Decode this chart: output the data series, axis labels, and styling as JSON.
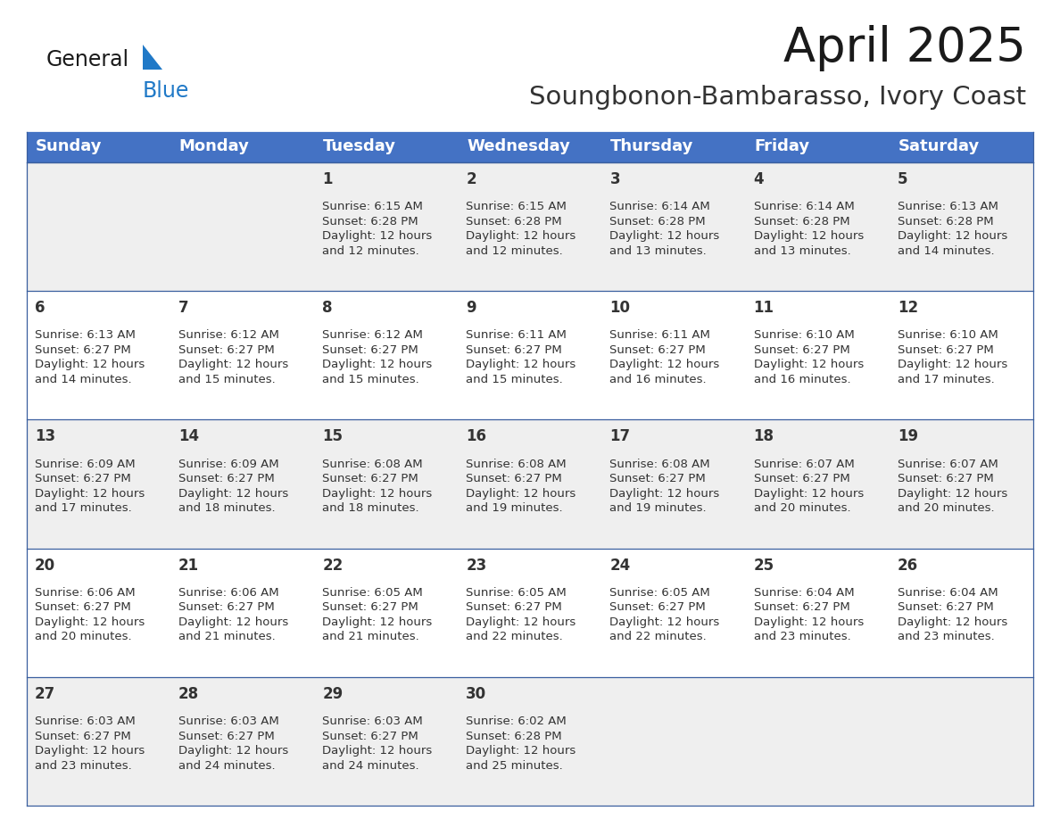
{
  "title": "April 2025",
  "subtitle": "Soungbonon-Bambarasso, Ivory Coast",
  "header_color": "#4472C4",
  "header_text_color": "#FFFFFF",
  "day_names": [
    "Sunday",
    "Monday",
    "Tuesday",
    "Wednesday",
    "Thursday",
    "Friday",
    "Saturday"
  ],
  "cell_bg_odd": "#EFEFEF",
  "cell_bg_even": "#FFFFFF",
  "border_color": "#3A5F9F",
  "text_color": "#333333",
  "calendar": [
    [
      {
        "day": "",
        "info": ""
      },
      {
        "day": "",
        "info": ""
      },
      {
        "day": "1",
        "info": "Sunrise: 6:15 AM\nSunset: 6:28 PM\nDaylight: 12 hours\nand 12 minutes."
      },
      {
        "day": "2",
        "info": "Sunrise: 6:15 AM\nSunset: 6:28 PM\nDaylight: 12 hours\nand 12 minutes."
      },
      {
        "day": "3",
        "info": "Sunrise: 6:14 AM\nSunset: 6:28 PM\nDaylight: 12 hours\nand 13 minutes."
      },
      {
        "day": "4",
        "info": "Sunrise: 6:14 AM\nSunset: 6:28 PM\nDaylight: 12 hours\nand 13 minutes."
      },
      {
        "day": "5",
        "info": "Sunrise: 6:13 AM\nSunset: 6:28 PM\nDaylight: 12 hours\nand 14 minutes."
      }
    ],
    [
      {
        "day": "6",
        "info": "Sunrise: 6:13 AM\nSunset: 6:27 PM\nDaylight: 12 hours\nand 14 minutes."
      },
      {
        "day": "7",
        "info": "Sunrise: 6:12 AM\nSunset: 6:27 PM\nDaylight: 12 hours\nand 15 minutes."
      },
      {
        "day": "8",
        "info": "Sunrise: 6:12 AM\nSunset: 6:27 PM\nDaylight: 12 hours\nand 15 minutes."
      },
      {
        "day": "9",
        "info": "Sunrise: 6:11 AM\nSunset: 6:27 PM\nDaylight: 12 hours\nand 15 minutes."
      },
      {
        "day": "10",
        "info": "Sunrise: 6:11 AM\nSunset: 6:27 PM\nDaylight: 12 hours\nand 16 minutes."
      },
      {
        "day": "11",
        "info": "Sunrise: 6:10 AM\nSunset: 6:27 PM\nDaylight: 12 hours\nand 16 minutes."
      },
      {
        "day": "12",
        "info": "Sunrise: 6:10 AM\nSunset: 6:27 PM\nDaylight: 12 hours\nand 17 minutes."
      }
    ],
    [
      {
        "day": "13",
        "info": "Sunrise: 6:09 AM\nSunset: 6:27 PM\nDaylight: 12 hours\nand 17 minutes."
      },
      {
        "day": "14",
        "info": "Sunrise: 6:09 AM\nSunset: 6:27 PM\nDaylight: 12 hours\nand 18 minutes."
      },
      {
        "day": "15",
        "info": "Sunrise: 6:08 AM\nSunset: 6:27 PM\nDaylight: 12 hours\nand 18 minutes."
      },
      {
        "day": "16",
        "info": "Sunrise: 6:08 AM\nSunset: 6:27 PM\nDaylight: 12 hours\nand 19 minutes."
      },
      {
        "day": "17",
        "info": "Sunrise: 6:08 AM\nSunset: 6:27 PM\nDaylight: 12 hours\nand 19 minutes."
      },
      {
        "day": "18",
        "info": "Sunrise: 6:07 AM\nSunset: 6:27 PM\nDaylight: 12 hours\nand 20 minutes."
      },
      {
        "day": "19",
        "info": "Sunrise: 6:07 AM\nSunset: 6:27 PM\nDaylight: 12 hours\nand 20 minutes."
      }
    ],
    [
      {
        "day": "20",
        "info": "Sunrise: 6:06 AM\nSunset: 6:27 PM\nDaylight: 12 hours\nand 20 minutes."
      },
      {
        "day": "21",
        "info": "Sunrise: 6:06 AM\nSunset: 6:27 PM\nDaylight: 12 hours\nand 21 minutes."
      },
      {
        "day": "22",
        "info": "Sunrise: 6:05 AM\nSunset: 6:27 PM\nDaylight: 12 hours\nand 21 minutes."
      },
      {
        "day": "23",
        "info": "Sunrise: 6:05 AM\nSunset: 6:27 PM\nDaylight: 12 hours\nand 22 minutes."
      },
      {
        "day": "24",
        "info": "Sunrise: 6:05 AM\nSunset: 6:27 PM\nDaylight: 12 hours\nand 22 minutes."
      },
      {
        "day": "25",
        "info": "Sunrise: 6:04 AM\nSunset: 6:27 PM\nDaylight: 12 hours\nand 23 minutes."
      },
      {
        "day": "26",
        "info": "Sunrise: 6:04 AM\nSunset: 6:27 PM\nDaylight: 12 hours\nand 23 minutes."
      }
    ],
    [
      {
        "day": "27",
        "info": "Sunrise: 6:03 AM\nSunset: 6:27 PM\nDaylight: 12 hours\nand 23 minutes."
      },
      {
        "day": "28",
        "info": "Sunrise: 6:03 AM\nSunset: 6:27 PM\nDaylight: 12 hours\nand 24 minutes."
      },
      {
        "day": "29",
        "info": "Sunrise: 6:03 AM\nSunset: 6:27 PM\nDaylight: 12 hours\nand 24 minutes."
      },
      {
        "day": "30",
        "info": "Sunrise: 6:02 AM\nSunset: 6:28 PM\nDaylight: 12 hours\nand 25 minutes."
      },
      {
        "day": "",
        "info": ""
      },
      {
        "day": "",
        "info": ""
      },
      {
        "day": "",
        "info": ""
      }
    ]
  ],
  "logo_general_color": "#1a1a1a",
  "logo_blue_color": "#2079C7",
  "title_fontsize": 38,
  "subtitle_fontsize": 21,
  "header_fontsize": 13,
  "day_num_fontsize": 12,
  "info_fontsize": 9.5
}
